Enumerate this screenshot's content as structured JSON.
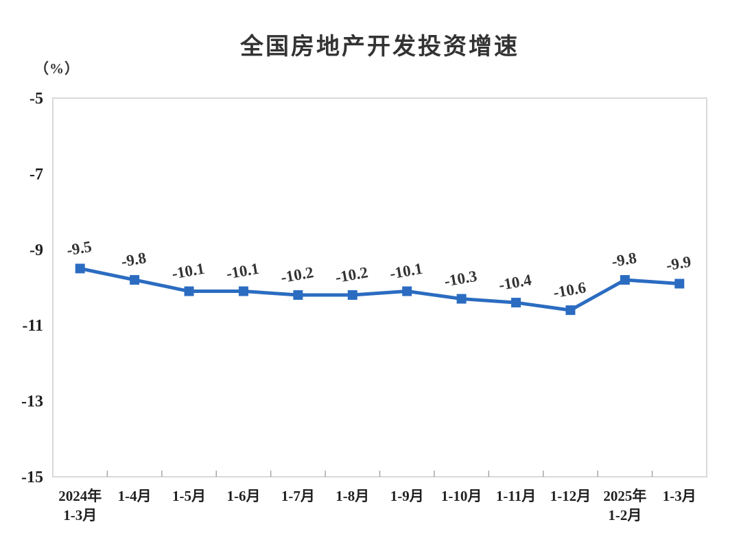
{
  "header": {
    "title": "全国房地产开发投资增速",
    "unit_label": "（%）"
  },
  "chart_data": {
    "type": "line",
    "title": "全国房地产开发投资增速",
    "ylabel": "（%）",
    "xlabel": "",
    "categories": [
      [
        "2024年",
        "1-3月"
      ],
      [
        "1-4月"
      ],
      [
        "1-5月"
      ],
      [
        "1-6月"
      ],
      [
        "1-7月"
      ],
      [
        "1-8月"
      ],
      [
        "1-9月"
      ],
      [
        "1-10月"
      ],
      [
        "1-11月"
      ],
      [
        "1-12月"
      ],
      [
        "2025年",
        "1-2月"
      ],
      [
        "1-3月"
      ]
    ],
    "values": [
      -9.5,
      -9.8,
      -10.1,
      -10.1,
      -10.2,
      -10.2,
      -10.1,
      -10.3,
      -10.4,
      -10.6,
      -9.8,
      -9.9
    ],
    "data_labels": [
      "-9.5",
      "-9.8",
      "-10.1",
      "-10.1",
      "-10.2",
      "-10.2",
      "-10.1",
      "-10.3",
      "-10.4",
      "-10.6",
      "-9.8",
      "-9.9"
    ],
    "yticks": [
      -5,
      -7,
      -9,
      -11,
      -13,
      -15
    ],
    "ylim": [
      -15,
      -5
    ],
    "grid": false,
    "legend": "none",
    "marker": "square",
    "data_label_rotation_deg": -10,
    "colors": {
      "line": "#2b6cc1",
      "marker": "#2b6cc1",
      "plot_border": "#d9d9d9",
      "tick_mark": "#a6a6a6",
      "axis_text": "#1f1f1f",
      "data_label_text": "#333333",
      "title_text": "#333333"
    }
  }
}
